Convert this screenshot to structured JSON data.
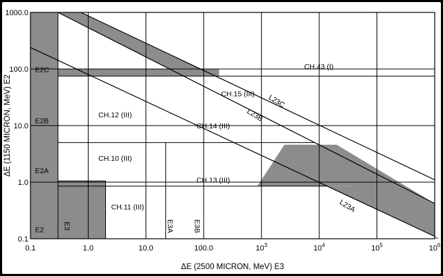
{
  "chart_data": {
    "type": "area",
    "x_scale": "log",
    "y_scale": "log",
    "xlim": [
      0.1,
      1000000
    ],
    "ylim": [
      0.1,
      1000
    ],
    "grid": true,
    "colors": {
      "shade": "#8c8c8c",
      "line": "#000000",
      "background": "#ffffff"
    },
    "xlabel": "ΔE (2500 MICRON, MeV) E3",
    "ylabel": "ΔE (1150 MICRON, MeV) E2",
    "x_ticks": [
      {
        "value": 0.1,
        "label": "0.1"
      },
      {
        "value": 1,
        "label": "1.0"
      },
      {
        "value": 10,
        "label": "10.0"
      },
      {
        "value": 100,
        "label": "100.0"
      },
      {
        "value": 1000,
        "label": "10",
        "exp": "3"
      },
      {
        "value": 10000,
        "label": "10",
        "exp": "4"
      },
      {
        "value": 100000,
        "label": "10",
        "exp": "5"
      },
      {
        "value": 1000000,
        "label": "10",
        "exp": "6"
      }
    ],
    "y_ticks": [
      {
        "value": 0.1,
        "label": "0.1"
      },
      {
        "value": 1,
        "label": "1.0"
      },
      {
        "value": 10,
        "label": "10.0"
      },
      {
        "value": 100,
        "label": "100.0"
      },
      {
        "value": 1000,
        "label": "1000.0"
      }
    ],
    "x_divisions": [
      0.3,
      2,
      22
    ],
    "y_divisions": [
      0.85,
      5,
      75
    ],
    "lines": [
      {
        "name": "L23A",
        "points": [
          [
            0.1,
            240
          ],
          [
            1000000,
            0.11
          ]
        ]
      },
      {
        "name": "L23B",
        "points": [
          [
            0.3,
            1000
          ],
          [
            1000000,
            0.42
          ]
        ]
      },
      {
        "name": "L23C",
        "points": [
          [
            0.75,
            1000
          ],
          [
            1000000,
            1.1
          ]
        ]
      }
    ],
    "shaded_regions": [
      {
        "name": "E2-column",
        "x": [
          0.1,
          0.3
        ],
        "y": [
          0.1,
          1000
        ]
      },
      {
        "name": "E3-column",
        "x": [
          0.3,
          2
        ],
        "y": [
          0.1,
          1.05
        ]
      },
      {
        "name": "E2C-band",
        "x": [
          0.3,
          185
        ],
        "y": [
          75,
          100
        ]
      },
      {
        "name": "upper-wedge",
        "x": [
          0.3,
          185
        ],
        "y": [
          100,
          1000
        ]
      },
      {
        "name": "middle-step",
        "x": [
          2500,
          20000
        ],
        "y": [
          4.6,
          4.6
        ]
      },
      {
        "name": "lower-step",
        "x": [
          850,
          42000
        ],
        "y": [
          0.85,
          0.85
        ]
      }
    ],
    "region_labels": [
      {
        "text": "E2C",
        "x": 0.12,
        "y": 88
      },
      {
        "text": "E2B",
        "x": 0.12,
        "y": 11
      },
      {
        "text": "E2A",
        "x": 0.12,
        "y": 1.45
      },
      {
        "text": "E2",
        "x": 0.12,
        "y": 0.13
      },
      {
        "text": "E3",
        "x": 0.39,
        "y": 0.2,
        "rotate": 90
      },
      {
        "text": "E3A",
        "x": 24,
        "y": 0.22,
        "rotate": 90
      },
      {
        "text": "E3B",
        "x": 70,
        "y": 0.22,
        "rotate": 90
      },
      {
        "text": "CH.43 (I)",
        "x": 5500,
        "y": 100
      },
      {
        "text": "CH.15 (III)",
        "x": 200,
        "y": 33
      },
      {
        "text": "CH.12 (III)",
        "x": 1.5,
        "y": 14
      },
      {
        "text": "CH.14 (III)",
        "x": 75,
        "y": 9
      },
      {
        "text": "CH.10 (III)",
        "x": 1.5,
        "y": 2.4
      },
      {
        "text": "CH.13 (III)",
        "x": 75,
        "y": 0.98
      },
      {
        "text": "CH.11 (III)",
        "x": 2.5,
        "y": 0.33
      },
      {
        "text": "L23C",
        "x": 1300,
        "y": 30,
        "rotate": 32
      },
      {
        "text": "L23B",
        "x": 550,
        "y": 17,
        "rotate": 32
      },
      {
        "text": "L23A",
        "x": 22000,
        "y": 0.42,
        "rotate": 32
      }
    ]
  }
}
